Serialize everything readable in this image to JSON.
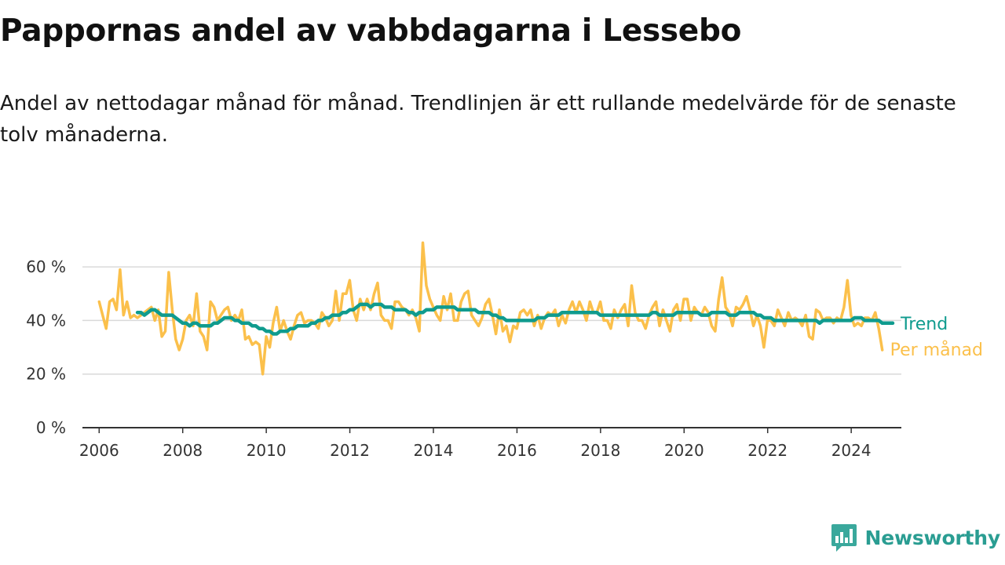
{
  "title": "Pappornas andel av vabbdagarna i Lessebo",
  "subtitle": "Andel av nettodagar månad för månad. Trendlinjen är ett rullande medelvärde för de senaste tolv månaderna.",
  "brand": {
    "name": "Newsworthy",
    "icon": "newsworthy-bar-chart-icon",
    "color": "#2a9d92"
  },
  "chart_data": {
    "type": "line",
    "title": "Pappornas andel av vabbdagarna i Lessebo",
    "xlabel": "",
    "ylabel": "",
    "xlim": [
      2005.6,
      2025.2
    ],
    "ylim": [
      0,
      70
    ],
    "x_ticks": [
      2006,
      2008,
      2010,
      2012,
      2014,
      2016,
      2018,
      2020,
      2022,
      2024
    ],
    "x_tick_labels": [
      "2006",
      "2008",
      "2010",
      "2012",
      "2014",
      "2016",
      "2018",
      "2020",
      "2022",
      "2024"
    ],
    "y_ticks": [
      0,
      20,
      40,
      60
    ],
    "y_tick_labels": [
      "0 %",
      "20 %",
      "40 %",
      "60 %"
    ],
    "grid": "horizontal",
    "legend": "labels at line ends (right)",
    "series": [
      {
        "name": "Per månad",
        "color": "#fbc04b",
        "x_start": 2006.0,
        "step": 0.0833,
        "values": [
          47,
          42,
          37,
          47,
          48,
          44,
          59,
          42,
          47,
          41,
          42,
          41,
          42,
          43,
          44,
          45,
          40,
          44,
          34,
          36,
          58,
          44,
          33,
          29,
          33,
          40,
          42,
          38,
          50,
          36,
          34,
          29,
          47,
          45,
          40,
          42,
          44,
          45,
          40,
          42,
          40,
          44,
          33,
          34,
          31,
          32,
          31,
          20,
          34,
          30,
          39,
          45,
          36,
          40,
          36,
          33,
          38,
          42,
          43,
          39,
          40,
          40,
          39,
          37,
          43,
          41,
          38,
          40,
          51,
          40,
          50,
          50,
          55,
          44,
          40,
          48,
          44,
          48,
          44,
          50,
          54,
          42,
          40,
          40,
          37,
          47,
          47,
          45,
          44,
          42,
          44,
          41,
          36,
          69,
          53,
          48,
          45,
          42,
          40,
          49,
          44,
          50,
          40,
          40,
          47,
          50,
          51,
          42,
          40,
          38,
          41,
          46,
          48,
          42,
          35,
          44,
          36,
          38,
          32,
          38,
          37,
          43,
          44,
          42,
          44,
          38,
          42,
          37,
          41,
          43,
          42,
          44,
          38,
          42,
          39,
          44,
          47,
          43,
          47,
          44,
          40,
          47,
          43,
          43,
          47,
          40,
          40,
          37,
          44,
          41,
          44,
          46,
          38,
          53,
          43,
          40,
          40,
          37,
          42,
          45,
          47,
          38,
          44,
          40,
          36,
          44,
          46,
          40,
          48,
          48,
          40,
          45,
          43,
          42,
          45,
          43,
          38,
          36,
          48,
          56,
          45,
          43,
          38,
          45,
          44,
          46,
          49,
          44,
          38,
          42,
          38,
          30,
          40,
          40,
          38,
          44,
          41,
          38,
          43,
          40,
          41,
          40,
          38,
          42,
          34,
          33,
          44,
          43,
          40,
          41,
          41,
          39,
          41,
          40,
          45,
          55,
          42,
          38,
          39,
          38,
          41,
          41,
          40,
          43,
          37,
          29
        ]
      },
      {
        "name": "Trend",
        "color": "#0f9b8e",
        "x_start": 2006.917,
        "step": 0.0833,
        "values": [
          43,
          43,
          42,
          43,
          44,
          44,
          43,
          42,
          42,
          42,
          42,
          41,
          40,
          39,
          39,
          38,
          39,
          39,
          38,
          38,
          38,
          38,
          39,
          39,
          40,
          41,
          41,
          41,
          40,
          40,
          39,
          39,
          39,
          38,
          38,
          37,
          37,
          36,
          36,
          35,
          35,
          36,
          36,
          36,
          37,
          37,
          38,
          38,
          38,
          38,
          39,
          39,
          40,
          40,
          41,
          41,
          42,
          42,
          42,
          43,
          43,
          44,
          44,
          45,
          46,
          46,
          46,
          45,
          46,
          46,
          46,
          45,
          45,
          45,
          44,
          44,
          44,
          44,
          43,
          43,
          42,
          43,
          43,
          44,
          44,
          44,
          45,
          45,
          45,
          45,
          45,
          45,
          44,
          44,
          44,
          44,
          44,
          44,
          43,
          43,
          43,
          43,
          42,
          42,
          41,
          41,
          40,
          40,
          40,
          40,
          40,
          40,
          40,
          40,
          40,
          41,
          41,
          41,
          42,
          42,
          42,
          42,
          43,
          43,
          43,
          43,
          43,
          43,
          43,
          43,
          43,
          43,
          43,
          42,
          42,
          42,
          42,
          42,
          42,
          42,
          42,
          42,
          42,
          42,
          42,
          42,
          42,
          42,
          43,
          43,
          42,
          42,
          42,
          42,
          42,
          43,
          43,
          43,
          43,
          43,
          43,
          43,
          42,
          42,
          42,
          43,
          43,
          43,
          43,
          43,
          42,
          42,
          42,
          43,
          43,
          43,
          43,
          43,
          42,
          42,
          41,
          41,
          41,
          40,
          40,
          40,
          40,
          40,
          40,
          40,
          40,
          40,
          40,
          40,
          40,
          40,
          39,
          40,
          40,
          40,
          40,
          40,
          40,
          40,
          40,
          40,
          41,
          41,
          41,
          40,
          40,
          40,
          40,
          40,
          39,
          39,
          39,
          39
        ]
      }
    ]
  }
}
